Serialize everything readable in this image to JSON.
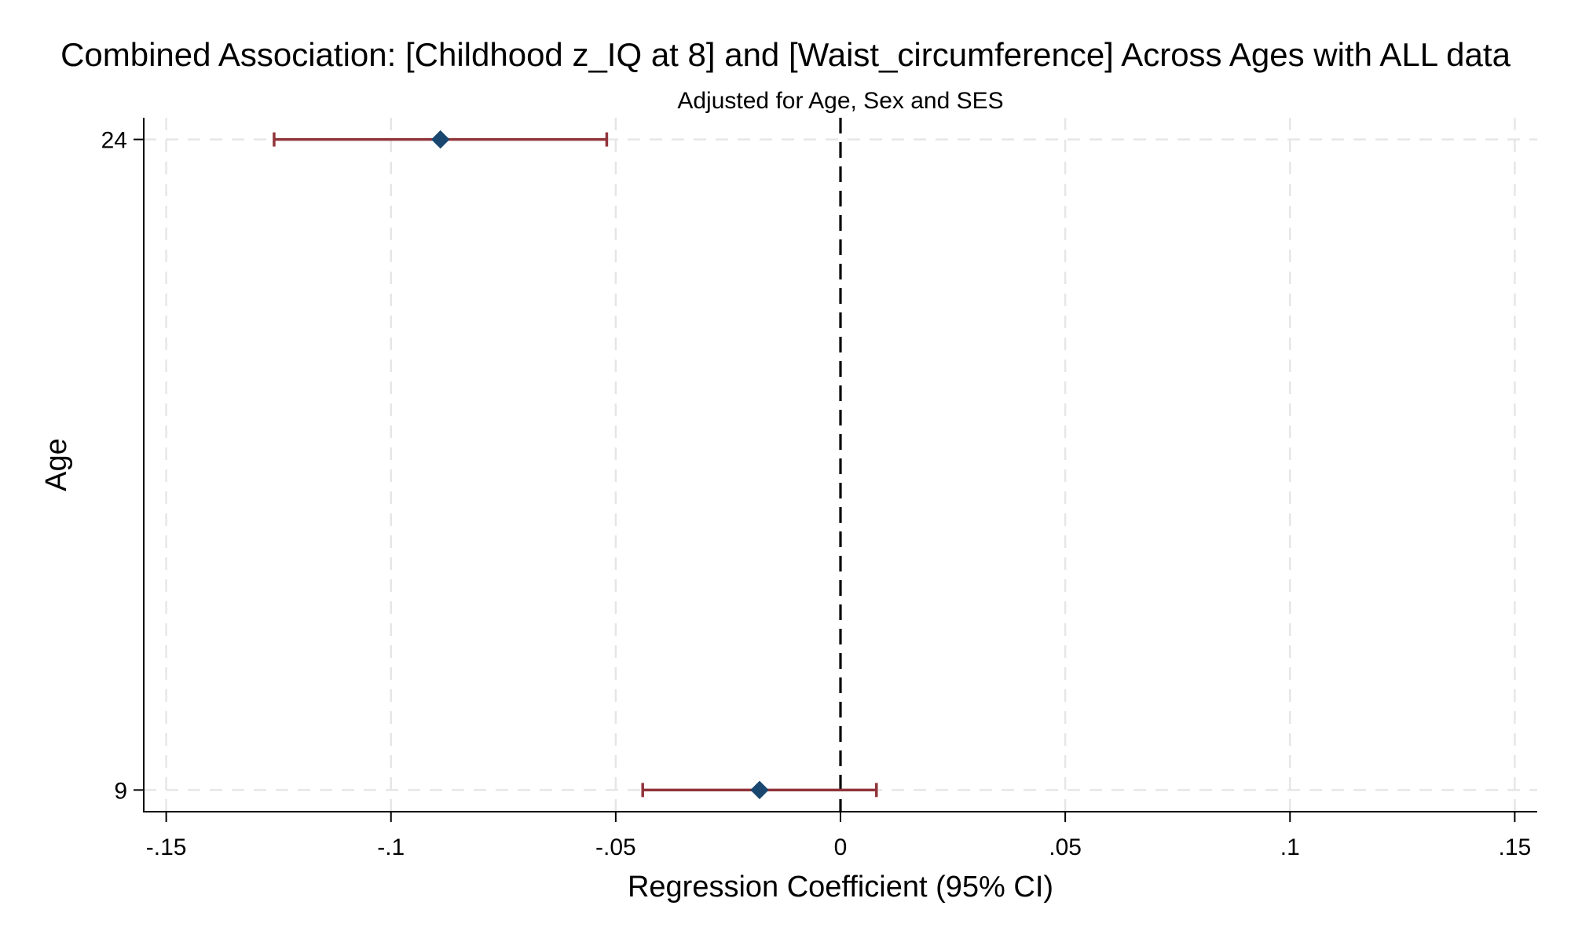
{
  "chart_data": {
    "type": "scatter",
    "subtype": "coefficient-plot-with-95ci",
    "title": "Combined Association: [Childhood z_IQ at 8] and [Waist_circumference] Across Ages with ALL data",
    "subtitle": "Adjusted for Age, Sex and SES",
    "xlabel": "Regression Coefficient (95% CI)",
    "ylabel": "Age",
    "xlim": [
      -0.155,
      0.155
    ],
    "ylim": [
      8.5,
      24.5
    ],
    "x_ticks": [
      {
        "value": -0.15,
        "label": "-.15"
      },
      {
        "value": -0.1,
        "label": "-.1"
      },
      {
        "value": -0.05,
        "label": "-.05"
      },
      {
        "value": 0,
        "label": "0"
      },
      {
        "value": 0.05,
        "label": ".05"
      },
      {
        "value": 0.1,
        "label": ".1"
      },
      {
        "value": 0.15,
        "label": ".15"
      }
    ],
    "y_ticks": [
      {
        "value": 24,
        "label": "24"
      },
      {
        "value": 9,
        "label": "9"
      }
    ],
    "grid": true,
    "reference_line": {
      "x": 0,
      "style": "dashed"
    },
    "points": [
      {
        "age": 24,
        "coef": -0.089,
        "ci_low": -0.126,
        "ci_high": -0.052
      },
      {
        "age": 9,
        "coef": -0.018,
        "ci_low": -0.044,
        "ci_high": 0.008
      }
    ],
    "colors": {
      "marker": "#1a476f",
      "ci": "#90353b",
      "grid": "#e6e6e6",
      "axis": "#000000",
      "reference": "#000000"
    }
  }
}
